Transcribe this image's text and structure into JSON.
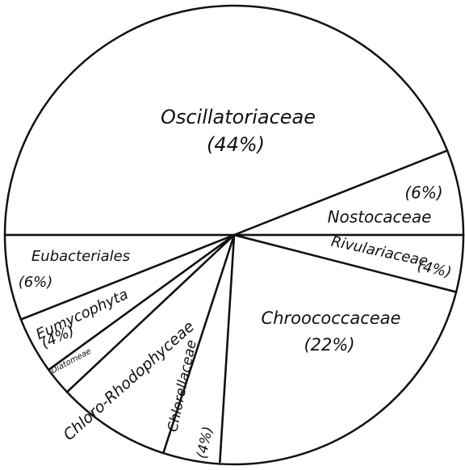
{
  "chart_data": {
    "type": "pie",
    "categories": [
      "Oscillatoriaceae",
      "Nostocaceae",
      "Rivulariaceae",
      "Chroococcaceae",
      "Chlorellaceae",
      "Chloro-Rhodophyceae",
      "Diatomeae",
      "Eumycophyta",
      "Eubacteriales"
    ],
    "values": [
      44,
      6,
      4,
      22,
      4,
      8,
      2,
      4,
      6
    ],
    "value_labels": [
      "(44%)",
      "(6%)",
      "(4%)",
      "(22%)",
      "(4%)",
      null,
      null,
      "(4%)",
      "(6%)"
    ],
    "color": "#ffffff"
  }
}
